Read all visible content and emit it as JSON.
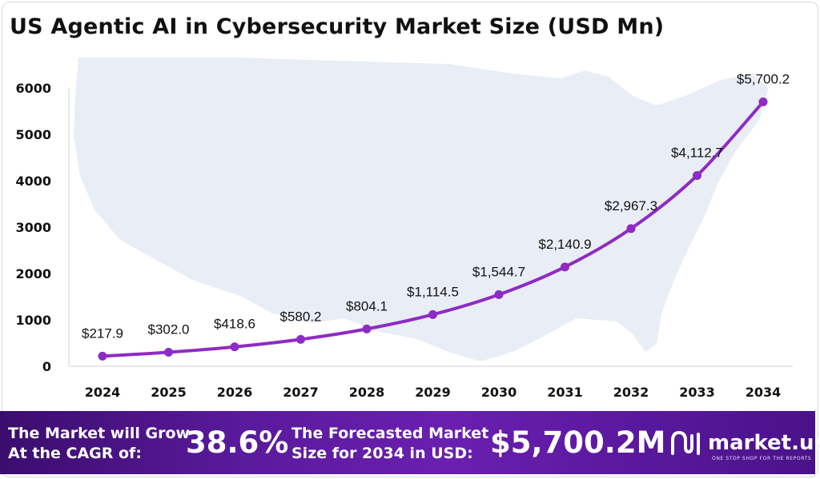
{
  "title": "US Agentic AI in Cybersecurity Market Size (USD Mn)",
  "chart_data": {
    "type": "line",
    "title": "US Agentic AI in Cybersecurity Market Size (USD Mn)",
    "xlabel": "",
    "ylabel": "",
    "categories": [
      "2024",
      "2025",
      "2026",
      "2027",
      "2028",
      "2029",
      "2030",
      "2031",
      "2032",
      "2033",
      "2034"
    ],
    "values": [
      217.9,
      302.0,
      418.6,
      580.2,
      804.1,
      1114.5,
      1544.7,
      2140.9,
      2967.3,
      4112.7,
      5700.2
    ],
    "data_labels": [
      "$217.9",
      "$302.0",
      "$418.6",
      "$580.2",
      "$804.1",
      "$1,114.5",
      "$1,544.7",
      "$2,140.9",
      "$2,967.3",
      "$4,112.7",
      "$5,700.2"
    ],
    "y_ticks": [
      0,
      1000,
      2000,
      3000,
      4000,
      5000,
      6000
    ],
    "ylim": [
      0,
      6000
    ],
    "grid": false,
    "legend": "none",
    "line_color": "#8e2bc4",
    "background_map": "United States map silhouette"
  },
  "banner": {
    "cagr_label_line1": "The Market will Grow",
    "cagr_label_line2": "At the CAGR of:",
    "cagr_value": "38.6%",
    "forecast_label_line1": "The Forecasted Market",
    "forecast_label_line2": "Size for 2034 in USD:",
    "forecast_value": "$5,700.2M",
    "brand_name": "market.us",
    "brand_tagline": "ONE STOP SHOP FOR THE REPORTS",
    "colors": {
      "start": "#3b0d6e",
      "mid": "#6a1fb0",
      "end": "#4a128a"
    }
  }
}
